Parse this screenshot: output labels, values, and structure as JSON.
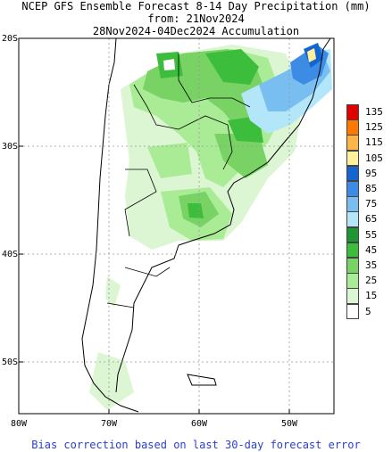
{
  "title": {
    "line1": "NCEP GFS Ensemble Forecast 8-14 Day Precipitation (mm)",
    "line2": "from: 21Nov2024",
    "line3": "28Nov2024-04Dec2024 Accumulation"
  },
  "axes": {
    "lat_labels": [
      "20S",
      "30S",
      "40S",
      "50S"
    ],
    "lon_labels": [
      "80W",
      "70W",
      "60W",
      "50W"
    ]
  },
  "legend": {
    "labels": [
      "135",
      "125",
      "115",
      "105",
      "95",
      "85",
      "75",
      "65",
      "55",
      "45",
      "35",
      "25",
      "15",
      "5"
    ],
    "colors": [
      "#e10000",
      "#ff7800",
      "#ffb446",
      "#fff09a",
      "#1464d2",
      "#3c8ce6",
      "#78bef0",
      "#b4e6fa",
      "#1e9632",
      "#3cbe3c",
      "#78d264",
      "#aaeb96",
      "#dcf5d2",
      "#ffffff"
    ]
  },
  "footer": "Bias correction based on last 30-day forecast error"
}
